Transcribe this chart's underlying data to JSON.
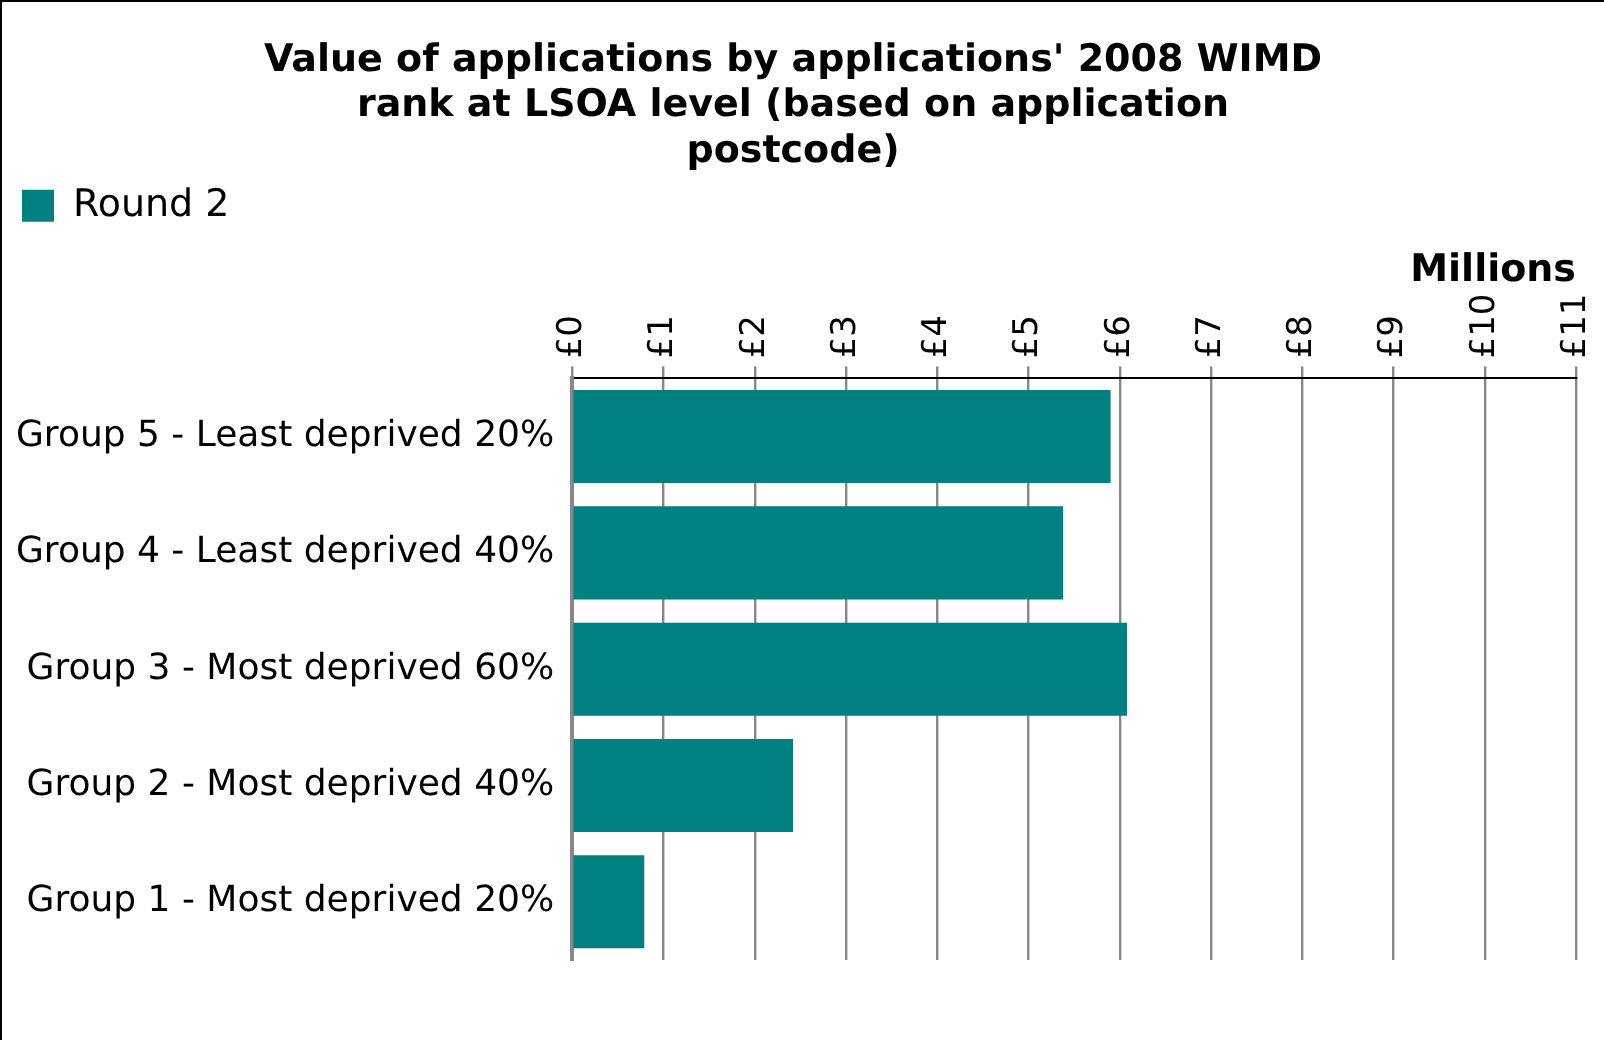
{
  "chart_data": {
    "type": "bar",
    "orientation": "horizontal",
    "title": "Value of applications by applications' 2008 WIMD rank at LSOA level (based on application postcode)",
    "xlabel": "Millions",
    "categories": [
      "Group 5 - Least deprived 20%",
      "Group 4 - Least deprived 40%",
      "Group 3 - Most deprived 60%",
      "Group 2 - Most deprived 40%",
      "Group 1 - Most deprived 20%"
    ],
    "series": [
      {
        "name": "Round 2",
        "color": "#008080",
        "values": [
          5.9,
          5.38,
          6.08,
          2.42,
          0.79
        ]
      }
    ],
    "xlim": [
      0,
      11
    ],
    "xticks": [
      {
        "value": 0,
        "label": "£0"
      },
      {
        "value": 1,
        "label": "£1"
      },
      {
        "value": 2,
        "label": "£2"
      },
      {
        "value": 3,
        "label": "£3"
      },
      {
        "value": 4,
        "label": "£4"
      },
      {
        "value": 5,
        "label": "£5"
      },
      {
        "value": 6,
        "label": "£6"
      },
      {
        "value": 7,
        "label": "£7"
      },
      {
        "value": 8,
        "label": "£8"
      },
      {
        "value": 9,
        "label": "£9"
      },
      {
        "value": 10,
        "label": "£10"
      },
      {
        "value": 11,
        "label": "£11"
      }
    ],
    "grid": "x",
    "legend": "top"
  }
}
